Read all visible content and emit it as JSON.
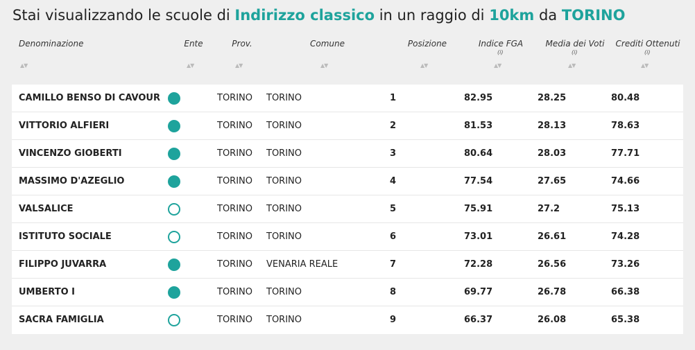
{
  "title": {
    "prefix": "Stai visualizzando le scuole di ",
    "indirizzo": "Indirizzo classico",
    "mid": " in un raggio di ",
    "raggio": "10km",
    "da": " da ",
    "citta": "TORINO"
  },
  "accent_color": "#1ea39c",
  "columns": [
    {
      "label": "Denominazione",
      "info": ""
    },
    {
      "label": "Ente",
      "info": ""
    },
    {
      "label": "Prov.",
      "info": ""
    },
    {
      "label": "Comune",
      "info": ""
    },
    {
      "label": "Posizione",
      "info": ""
    },
    {
      "label": "Indice FGA",
      "info": "(i)"
    },
    {
      "label": "Media dei Voti",
      "info": "(i)"
    },
    {
      "label": "Crediti Ottenuti",
      "info": "(i)"
    }
  ],
  "sort_icon": "▲▼",
  "rows": [
    {
      "name": "CAMILLO BENSO DI CAVOUR",
      "ente_statale": true,
      "prov": "TORINO",
      "comune": "TORINO",
      "pos": "1",
      "fga": "82.95",
      "media": "28.25",
      "crediti": "80.48"
    },
    {
      "name": "VITTORIO ALFIERI",
      "ente_statale": true,
      "prov": "TORINO",
      "comune": "TORINO",
      "pos": "2",
      "fga": "81.53",
      "media": "28.13",
      "crediti": "78.63"
    },
    {
      "name": "VINCENZO GIOBERTI",
      "ente_statale": true,
      "prov": "TORINO",
      "comune": "TORINO",
      "pos": "3",
      "fga": "80.64",
      "media": "28.03",
      "crediti": "77.71"
    },
    {
      "name": "MASSIMO D'AZEGLIO",
      "ente_statale": true,
      "prov": "TORINO",
      "comune": "TORINO",
      "pos": "4",
      "fga": "77.54",
      "media": "27.65",
      "crediti": "74.66"
    },
    {
      "name": "VALSALICE",
      "ente_statale": false,
      "prov": "TORINO",
      "comune": "TORINO",
      "pos": "5",
      "fga": "75.91",
      "media": "27.2",
      "crediti": "75.13"
    },
    {
      "name": "ISTITUTO SOCIALE",
      "ente_statale": false,
      "prov": "TORINO",
      "comune": "TORINO",
      "pos": "6",
      "fga": "73.01",
      "media": "26.61",
      "crediti": "74.28"
    },
    {
      "name": "FILIPPO JUVARRA",
      "ente_statale": true,
      "prov": "TORINO",
      "comune": "VENARIA REALE",
      "pos": "7",
      "fga": "72.28",
      "media": "26.56",
      "crediti": "73.26"
    },
    {
      "name": "UMBERTO I",
      "ente_statale": true,
      "prov": "TORINO",
      "comune": "TORINO",
      "pos": "8",
      "fga": "69.77",
      "media": "26.78",
      "crediti": "66.38"
    },
    {
      "name": "SACRA FAMIGLIA",
      "ente_statale": false,
      "prov": "TORINO",
      "comune": "TORINO",
      "pos": "9",
      "fga": "66.37",
      "media": "26.08",
      "crediti": "65.38"
    }
  ]
}
